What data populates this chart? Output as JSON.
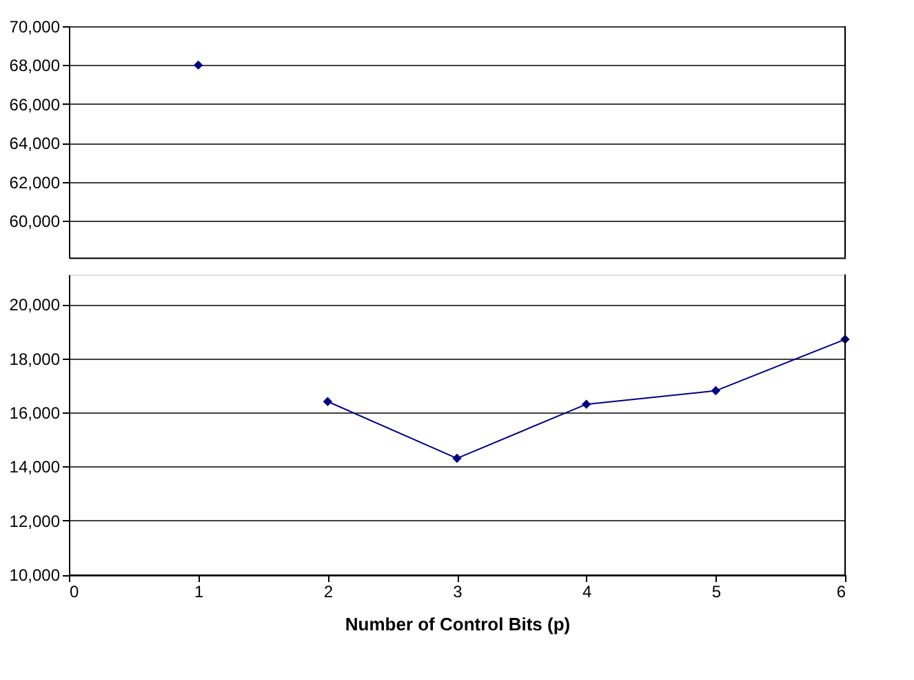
{
  "chart_data": [
    {
      "type": "line",
      "x": [
        1
      ],
      "series": [
        {
          "color": "#000080",
          "values": [
            68000
          ]
        }
      ],
      "xlim": [
        0,
        6
      ],
      "xticks": [
        0,
        1,
        2,
        3,
        4,
        5,
        6
      ],
      "ylim": [
        58100,
        70000
      ],
      "yticks": [
        {
          "value": 60000,
          "label": "60,000"
        },
        {
          "value": 62000,
          "label": "62,000"
        },
        {
          "value": 64000,
          "label": "64,000"
        },
        {
          "value": 66000,
          "label": "66,000"
        },
        {
          "value": 68000,
          "label": "68,000"
        },
        {
          "value": 70000,
          "label": "70,000"
        }
      ],
      "grid": "y",
      "tick_labels": "y",
      "marker": "diamond",
      "line_style": "solid"
    },
    {
      "type": "line",
      "xlabel": "Number of Control Bits (p)",
      "x": [
        2,
        3,
        4,
        5,
        6
      ],
      "series": [
        {
          "color": "#000080",
          "values": [
            16400,
            14300,
            16300,
            16800,
            18700
          ]
        }
      ],
      "xlim": [
        0,
        6
      ],
      "xticks": [
        0,
        1,
        2,
        3,
        4,
        5,
        6
      ],
      "ylim": [
        10000,
        21100
      ],
      "yticks": [
        {
          "value": 10000,
          "label": "10,000"
        },
        {
          "value": 12000,
          "label": "12,000"
        },
        {
          "value": 14000,
          "label": "14,000"
        },
        {
          "value": 16000,
          "label": "16,000"
        },
        {
          "value": 18000,
          "label": "18,000"
        },
        {
          "value": 20000,
          "label": "20,000"
        }
      ],
      "grid": "y",
      "marker": "diamond",
      "line_style": "solid"
    }
  ]
}
